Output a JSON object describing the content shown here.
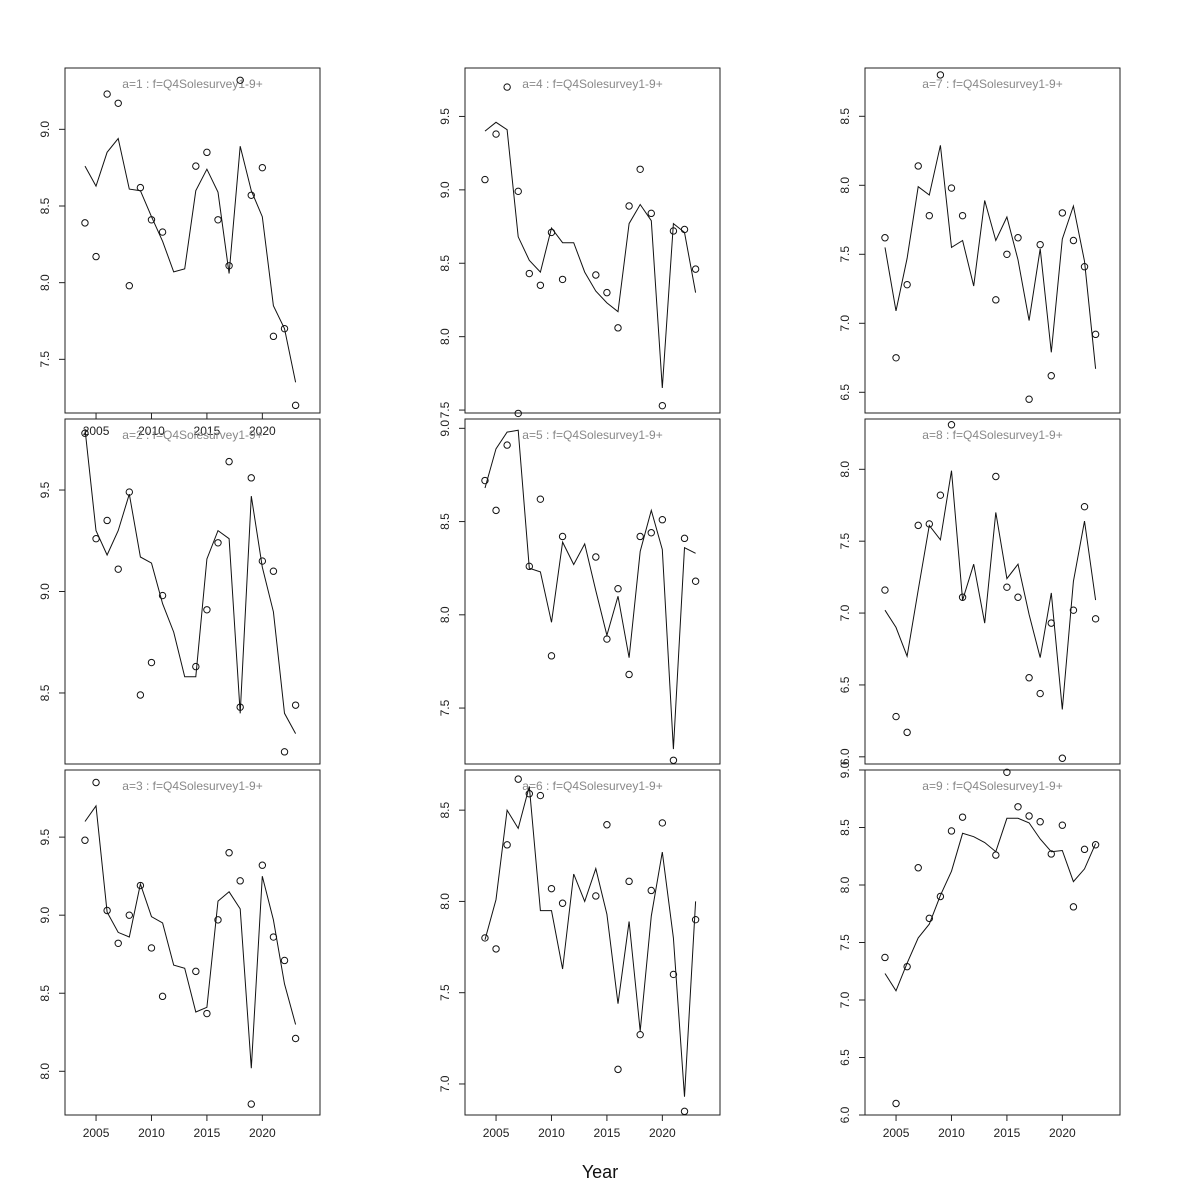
{
  "xlabel": "Year",
  "chart_data": [
    {
      "type": "scatter+line",
      "title": "a=1 : f=Q4Solesurvey1-9+",
      "x": [
        2004,
        2005,
        2006,
        2007,
        2008,
        2009,
        2010,
        2011,
        2012,
        2013,
        2014,
        2015,
        2016,
        2017,
        2018,
        2019,
        2020,
        2021,
        2022,
        2023
      ],
      "observed": [
        8.39,
        8.17,
        9.23,
        9.17,
        7.98,
        8.62,
        8.41,
        8.33,
        null,
        null,
        8.76,
        8.85,
        8.41,
        8.11,
        9.32,
        8.57,
        8.75,
        7.65,
        7.7,
        7.2
      ],
      "fitted": [
        8.76,
        8.63,
        8.85,
        8.94,
        8.61,
        8.6,
        8.43,
        8.27,
        8.07,
        8.09,
        8.6,
        8.74,
        8.59,
        8.06,
        8.89,
        8.6,
        8.43,
        7.85,
        7.7,
        7.35
      ],
      "ylim": [
        7.15,
        9.4
      ],
      "yticks": [
        "7.5",
        "8.0",
        "8.5",
        "9.0"
      ],
      "xticks": [
        "2005",
        "2010",
        "2015",
        "2020"
      ]
    },
    {
      "type": "scatter+line",
      "title": "a=2 : f=Q4Solesurvey1-9+",
      "x": [
        2004,
        2005,
        2006,
        2007,
        2008,
        2009,
        2010,
        2011,
        2012,
        2013,
        2014,
        2015,
        2016,
        2017,
        2018,
        2019,
        2020,
        2021,
        2022,
        2023
      ],
      "observed": [
        9.78,
        9.26,
        9.35,
        9.11,
        9.49,
        8.49,
        8.65,
        8.98,
        null,
        null,
        8.63,
        8.91,
        9.24,
        9.64,
        8.43,
        9.56,
        9.15,
        9.1,
        8.21,
        8.44
      ],
      "fitted": [
        9.8,
        9.3,
        9.18,
        9.3,
        9.48,
        9.17,
        9.14,
        8.94,
        8.8,
        8.58,
        8.58,
        9.16,
        9.3,
        9.26,
        8.4,
        9.47,
        9.12,
        8.9,
        8.4,
        8.3
      ],
      "ylim": [
        8.15,
        9.85
      ],
      "yticks": [
        "8.5",
        "9.0",
        "9.5"
      ],
      "xticks": []
    },
    {
      "type": "scatter+line",
      "title": "a=3 : f=Q4Solesurvey1-9+",
      "x": [
        2004,
        2005,
        2006,
        2007,
        2008,
        2009,
        2010,
        2011,
        2012,
        2013,
        2014,
        2015,
        2016,
        2017,
        2018,
        2019,
        2020,
        2021,
        2022,
        2023
      ],
      "observed": [
        9.48,
        9.85,
        9.03,
        8.82,
        9.0,
        9.19,
        8.79,
        8.48,
        null,
        null,
        8.64,
        8.37,
        8.97,
        9.4,
        9.22,
        7.79,
        9.32,
        8.86,
        8.71,
        8.21
      ],
      "fitted": [
        9.6,
        9.7,
        9.02,
        8.89,
        8.86,
        9.2,
        8.99,
        8.95,
        8.68,
        8.66,
        8.38,
        8.41,
        9.09,
        9.15,
        9.04,
        8.02,
        9.25,
        8.97,
        8.56,
        8.3
      ],
      "ylim": [
        7.72,
        9.93
      ],
      "yticks": [
        "8.0",
        "8.5",
        "9.0",
        "9.5"
      ],
      "xticks": [
        "2005",
        "2010",
        "2015",
        "2020"
      ]
    },
    {
      "type": "scatter+line",
      "title": "a=4 : f=Q4Solesurvey1-9+",
      "x": [
        2004,
        2005,
        2006,
        2007,
        2008,
        2009,
        2010,
        2011,
        2012,
        2013,
        2014,
        2015,
        2016,
        2017,
        2018,
        2019,
        2020,
        2021,
        2022,
        2023
      ],
      "observed": [
        9.07,
        9.38,
        9.7,
        8.99,
        8.43,
        8.35,
        8.71,
        8.39,
        null,
        null,
        8.42,
        8.3,
        8.06,
        8.89,
        9.14,
        8.84,
        7.53,
        8.72,
        8.73,
        8.46
      ],
      "fitted": [
        9.4,
        9.46,
        9.41,
        8.68,
        8.52,
        8.44,
        8.74,
        8.64,
        8.64,
        8.44,
        8.31,
        8.23,
        8.17,
        8.77,
        8.9,
        8.79,
        7.65,
        8.77,
        8.71,
        8.3
      ],
      "ylim": [
        7.48,
        9.83
      ],
      "yticks": [
        "7.5",
        "8.0",
        "8.5",
        "9.0",
        "9.5"
      ],
      "xticks": []
    },
    {
      "type": "scatter+line",
      "title": "a=5 : f=Q4Solesurvey1-9+",
      "x": [
        2004,
        2005,
        2006,
        2007,
        2008,
        2009,
        2010,
        2011,
        2012,
        2013,
        2014,
        2015,
        2016,
        2017,
        2018,
        2019,
        2020,
        2021,
        2022,
        2023
      ],
      "observed": [
        8.72,
        8.56,
        8.91,
        9.08,
        8.26,
        8.62,
        7.78,
        8.42,
        null,
        null,
        8.31,
        7.87,
        8.14,
        7.68,
        8.42,
        8.44,
        8.51,
        7.22,
        8.41,
        8.18
      ],
      "fitted": [
        8.68,
        8.89,
        8.98,
        8.99,
        8.25,
        8.23,
        7.96,
        8.39,
        8.27,
        8.38,
        8.13,
        7.89,
        8.1,
        7.77,
        8.34,
        8.56,
        8.35,
        7.28,
        8.36,
        8.33
      ],
      "ylim": [
        7.2,
        9.05
      ],
      "yticks": [
        "7.5",
        "8.0",
        "8.5",
        "9.0"
      ],
      "xticks": []
    },
    {
      "type": "scatter+line",
      "title": "a=6 : f=Q4Solesurvey1-9+",
      "x": [
        2004,
        2005,
        2006,
        2007,
        2008,
        2009,
        2010,
        2011,
        2012,
        2013,
        2014,
        2015,
        2016,
        2017,
        2018,
        2019,
        2020,
        2021,
        2022,
        2023
      ],
      "observed": [
        7.8,
        7.74,
        8.31,
        8.67,
        8.59,
        8.58,
        8.07,
        7.99,
        null,
        null,
        8.03,
        8.42,
        7.08,
        8.11,
        7.27,
        8.06,
        8.43,
        7.6,
        6.85,
        7.9
      ],
      "fitted": [
        7.79,
        8.01,
        8.5,
        8.4,
        8.63,
        7.95,
        7.95,
        7.63,
        8.15,
        8.0,
        8.18,
        7.93,
        7.44,
        7.89,
        7.29,
        7.92,
        8.27,
        7.8,
        6.93,
        8.0
      ],
      "ylim": [
        6.83,
        8.72
      ],
      "yticks": [
        "7.0",
        "7.5",
        "8.0",
        "8.5"
      ],
      "xticks": [
        "2005",
        "2010",
        "2015",
        "2020"
      ]
    },
    {
      "type": "scatter+line",
      "title": "a=7 : f=Q4Solesurvey1-9+",
      "x": [
        2004,
        2005,
        2006,
        2007,
        2008,
        2009,
        2010,
        2011,
        2012,
        2013,
        2014,
        2015,
        2016,
        2017,
        2018,
        2019,
        2020,
        2021,
        2022,
        2023
      ],
      "observed": [
        7.62,
        6.75,
        7.28,
        8.14,
        7.78,
        8.8,
        7.98,
        7.78,
        null,
        null,
        7.17,
        7.5,
        7.62,
        6.45,
        7.57,
        6.62,
        7.8,
        7.6,
        7.41,
        6.92
      ],
      "fitted": [
        7.55,
        7.09,
        7.47,
        7.99,
        7.93,
        8.29,
        7.55,
        7.6,
        7.27,
        7.89,
        7.6,
        7.77,
        7.46,
        7.02,
        7.54,
        6.79,
        7.61,
        7.85,
        7.45,
        6.67
      ],
      "ylim": [
        6.35,
        8.85
      ],
      "yticks": [
        "6.5",
        "7.0",
        "7.5",
        "8.0",
        "8.5"
      ],
      "xticks": []
    },
    {
      "type": "scatter+line",
      "title": "a=8 : f=Q4Solesurvey1-9+",
      "x": [
        2004,
        2005,
        2006,
        2007,
        2008,
        2009,
        2010,
        2011,
        2012,
        2013,
        2014,
        2015,
        2016,
        2017,
        2018,
        2019,
        2020,
        2021,
        2022,
        2023
      ],
      "observed": [
        7.16,
        6.28,
        6.17,
        7.61,
        7.62,
        7.82,
        8.31,
        7.11,
        null,
        null,
        7.95,
        7.18,
        7.11,
        6.55,
        6.44,
        6.93,
        5.99,
        7.02,
        7.74,
        6.96
      ],
      "fitted": [
        7.02,
        6.9,
        6.7,
        7.16,
        7.61,
        7.51,
        7.99,
        7.09,
        7.34,
        6.93,
        7.7,
        7.24,
        7.34,
        6.99,
        6.69,
        7.14,
        6.33,
        7.22,
        7.64,
        7.09
      ],
      "ylim": [
        5.95,
        8.35
      ],
      "yticks": [
        "6.0",
        "6.5",
        "7.0",
        "7.5",
        "8.0"
      ],
      "xticks": []
    },
    {
      "type": "scatter+line",
      "title": "a=9 : f=Q4Solesurvey1-9+",
      "x": [
        2004,
        2005,
        2006,
        2007,
        2008,
        2009,
        2010,
        2011,
        2012,
        2013,
        2014,
        2015,
        2016,
        2017,
        2018,
        2019,
        2020,
        2021,
        2022,
        2023
      ],
      "observed": [
        7.37,
        6.1,
        7.29,
        8.15,
        7.71,
        7.9,
        8.47,
        8.59,
        null,
        null,
        8.26,
        8.98,
        8.68,
        8.6,
        8.55,
        8.27,
        8.52,
        7.81,
        8.31,
        8.35
      ],
      "fitted": [
        7.23,
        7.08,
        7.32,
        7.54,
        7.66,
        7.91,
        8.12,
        8.45,
        8.42,
        8.37,
        8.29,
        8.58,
        8.58,
        8.54,
        8.4,
        8.29,
        8.3,
        8.03,
        8.14,
        8.36
      ],
      "ylim": [
        6.0,
        9.0
      ],
      "yticks": [
        "6.0",
        "6.5",
        "7.0",
        "7.5",
        "8.0",
        "8.5",
        "9.0"
      ],
      "xticks": [
        "2005",
        "2010",
        "2015",
        "2020"
      ]
    }
  ]
}
